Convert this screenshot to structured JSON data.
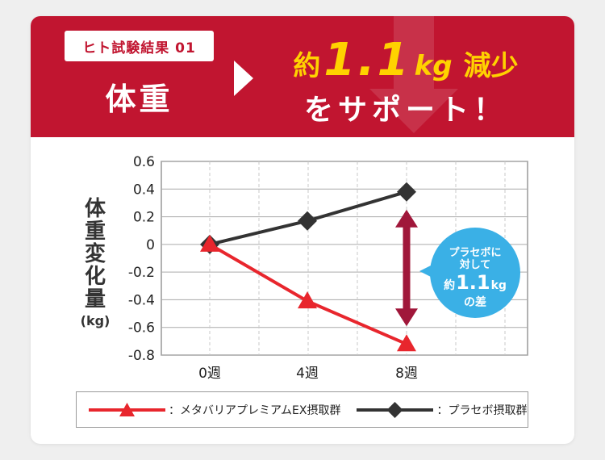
{
  "banner": {
    "test_label": "ヒト試験結果 01",
    "category": "体重",
    "headline_prefix": "約",
    "headline_value": "1.1",
    "headline_unit": "kg",
    "headline_suffix": "減少",
    "headline_line2": "をサポート！",
    "colors": {
      "banner": "#c11530",
      "accent": "#ffd200"
    }
  },
  "axis": {
    "ylabel_chars": [
      "体",
      "重",
      "変",
      "化",
      "量"
    ],
    "yunit": "(kg)"
  },
  "chart_data": {
    "type": "line",
    "x": [
      "0週",
      "4週",
      "8週"
    ],
    "ylim": [
      -0.8,
      0.6
    ],
    "yticks": [
      "0.6",
      "0.4",
      "0.2",
      "0",
      "-0.2",
      "-0.4",
      "-0.6",
      "-0.8"
    ],
    "ytick_values": [
      0.6,
      0.4,
      0.2,
      0,
      -0.2,
      -0.4,
      -0.6,
      -0.8
    ],
    "grid": true,
    "legend_position": "bottom",
    "series": [
      {
        "name": "：メタバリアプレミアムEX摂取群",
        "values": [
          0,
          -0.41,
          -0.72
        ],
        "color": "#e8262d",
        "marker": "triangle"
      },
      {
        "name": "：プラセボ摂取群",
        "values": [
          0,
          0.17,
          0.38
        ],
        "color": "#333333",
        "marker": "diamond"
      }
    ],
    "difference_arrow": {
      "x": "8週",
      "from": 0.38,
      "to": -0.72,
      "color": "#a0173a"
    }
  },
  "bubble": {
    "line1": "プラセボに",
    "line2": "対して",
    "prefix": "約",
    "value": "1.1",
    "unit": "kg",
    "suffix": "の差",
    "color": "#3ab0e6"
  }
}
